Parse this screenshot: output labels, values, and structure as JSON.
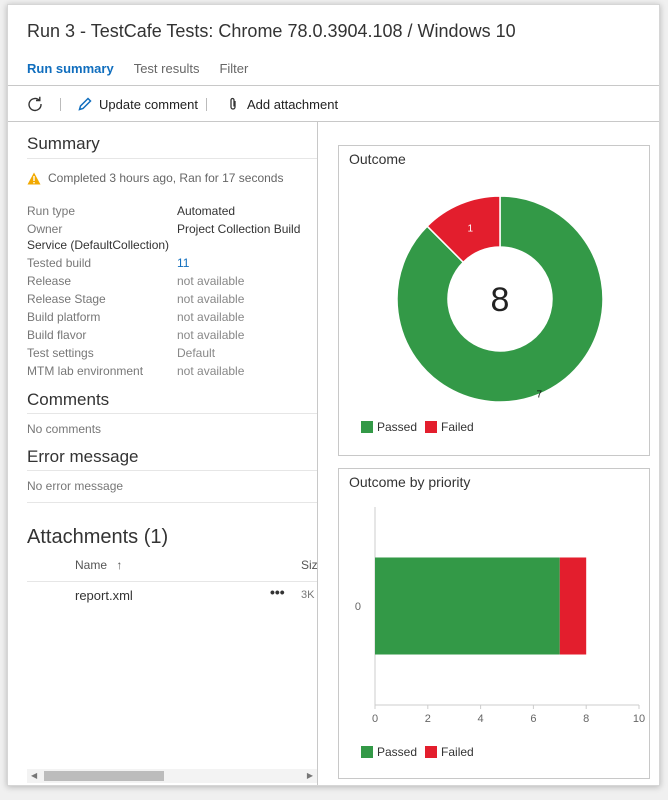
{
  "window": {
    "title": "Run 3 - TestCafe Tests: Chrome 78.0.3904.108 / Windows 10",
    "tabs": [
      {
        "label": "Run summary",
        "active": true
      },
      {
        "label": "Test results",
        "active": false
      },
      {
        "label": "Filter",
        "active": false
      }
    ]
  },
  "toolbar": {
    "refresh_icon": "refresh-icon",
    "update_comment": "Update comment",
    "add_attachment": "Add attachment"
  },
  "summary": {
    "title": "Summary",
    "status": "Completed 3 hours ago, Ran for 17 seconds",
    "fields": [
      {
        "key": "Run type",
        "value": "Automated"
      },
      {
        "key": "Owner",
        "value": "Project Collection Build",
        "value_cont": "Service (DefaultCollection)"
      },
      {
        "key": "Tested build",
        "value": "11"
      },
      {
        "key": "Release",
        "value": "not available"
      },
      {
        "key": "Release Stage",
        "value": "not available"
      },
      {
        "key": "Build platform",
        "value": "not available"
      },
      {
        "key": "Build flavor",
        "value": "not available"
      },
      {
        "key": "Test settings",
        "value": "Default"
      },
      {
        "key": "MTM lab environment",
        "value": "not available"
      }
    ]
  },
  "comments": {
    "title": "Comments",
    "empty": "No comments"
  },
  "error": {
    "title": "Error message",
    "empty": "No error message"
  },
  "attachments": {
    "title": "Attachments (1)",
    "col_name": "Name",
    "sort_icon": "↑",
    "col_size": "Siz",
    "rows": [
      {
        "name": "report.xml",
        "more": "•••",
        "size": "3K"
      }
    ]
  },
  "colors": {
    "passed": "#339947",
    "failed": "#e31e2d",
    "accent": "#106ebe"
  },
  "outcome_card": {
    "title": "Outcome",
    "total": "8"
  },
  "priority_card": {
    "title": "Outcome by priority"
  },
  "legend": {
    "passed": "Passed",
    "failed": "Failed"
  },
  "chart_data": [
    {
      "type": "pie",
      "title": "Outcome",
      "center_label": "8",
      "slices": [
        {
          "name": "Passed",
          "value": 7,
          "label": "7"
        },
        {
          "name": "Failed",
          "value": 1,
          "label": "1"
        }
      ]
    },
    {
      "type": "bar",
      "orientation": "horizontal",
      "stacked": true,
      "title": "Outcome by priority",
      "categories": [
        "0"
      ],
      "series": [
        {
          "name": "Passed",
          "values": [
            7
          ]
        },
        {
          "name": "Failed",
          "values": [
            1
          ]
        }
      ],
      "xlim": [
        0,
        10
      ],
      "xticks": [
        "0",
        "2",
        "4",
        "6",
        "8",
        "10"
      ]
    }
  ]
}
